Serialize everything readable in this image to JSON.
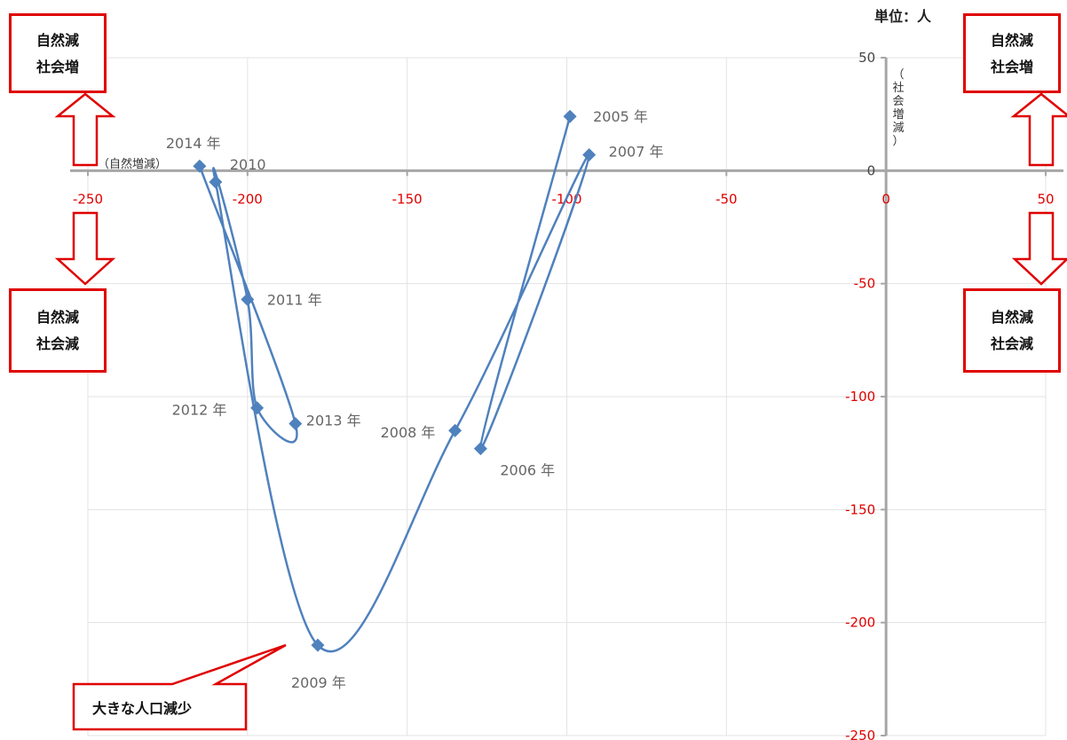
{
  "unit_label": "単位：人",
  "quadrants": {
    "top_left": {
      "line1": "自然減",
      "line2": "社会増"
    },
    "top_right": {
      "line1": "自然減",
      "line2": "社会増"
    },
    "bottom_left": {
      "line1": "自然減",
      "line2": "社会減"
    },
    "bottom_right": {
      "line1": "自然減",
      "line2": "社会減"
    }
  },
  "callout": "大きな人口減少",
  "colors": {
    "series": "#4f81bd",
    "accent": "#e00000",
    "grid": "#e3e3e3",
    "axis": "#a6a6a6"
  },
  "chart_data": {
    "type": "scatter",
    "title": "",
    "xlabel": "（自然増減）",
    "ylabel": "（社会増減）",
    "xlim": [
      -250,
      50
    ],
    "ylim": [
      -250,
      50
    ],
    "x_ticks": [
      "-250",
      "-200",
      "-150",
      "-100",
      "-50",
      "0",
      "50"
    ],
    "y_ticks": [
      "50",
      "0",
      "-50",
      "-100",
      "-150",
      "-200",
      "-250"
    ],
    "grid": true,
    "smoothed_line": true,
    "points": [
      {
        "label": "2005 年",
        "x": -99,
        "y": 24
      },
      {
        "label": "2006 年",
        "x": -127,
        "y": -123
      },
      {
        "label": "2007 年",
        "x": -93,
        "y": 7
      },
      {
        "label": "2008 年",
        "x": -135,
        "y": -115
      },
      {
        "label": "2009 年",
        "x": -178,
        "y": -210
      },
      {
        "label": "2010",
        "x": -210,
        "y": -5
      },
      {
        "label": "2011 年",
        "x": -200,
        "y": -57
      },
      {
        "label": "2012 年",
        "x": -197,
        "y": -105
      },
      {
        "label": "2013 年",
        "x": -185,
        "y": -112
      },
      {
        "label": "2014 年",
        "x": -215,
        "y": 2
      }
    ]
  }
}
